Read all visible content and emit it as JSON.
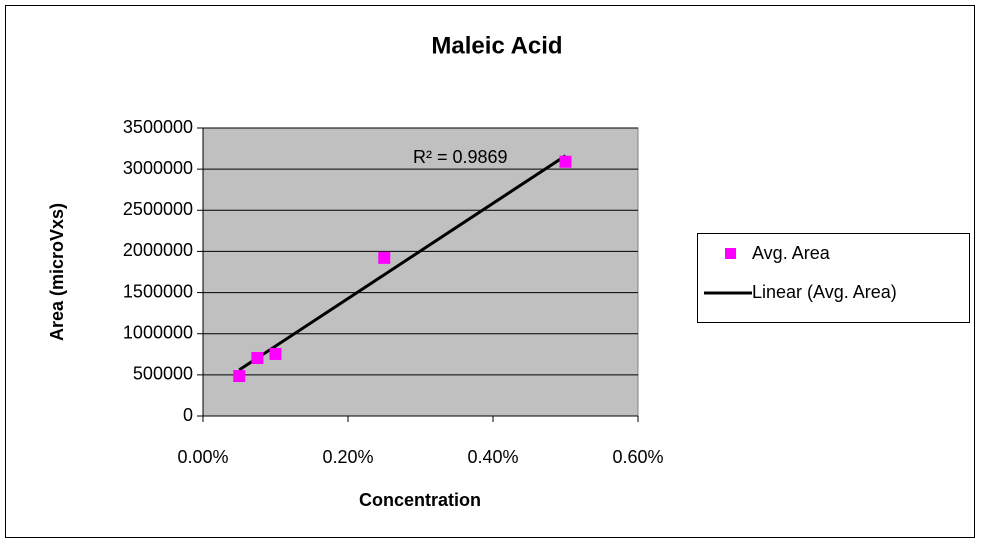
{
  "chart_data": {
    "type": "scatter",
    "title": "Maleic Acid",
    "x_label": "Concentration",
    "y_label": "Area (microVxs)",
    "series": [
      {
        "name": "Avg. Area",
        "color": "#ff00ff",
        "x": [
          0.05,
          0.075,
          0.1,
          0.25,
          0.5
        ],
        "values": [
          486000,
          705000,
          754000,
          1922000,
          3090000
        ]
      },
      {
        "name": "Linear (Avg. Area)",
        "color": "#000000",
        "x": [
          0.05,
          0.5
        ],
        "values": [
          560000,
          3163000
        ]
      }
    ],
    "annotation": "R² = 0.9869",
    "xlim": [
      0,
      0.6
    ],
    "xticks": [
      {
        "value": 0,
        "label": "0.00%"
      },
      {
        "value": 0.2,
        "label": "0.20%"
      },
      {
        "value": 0.4,
        "label": "0.40%"
      },
      {
        "value": 0.6,
        "label": "0.60%"
      }
    ],
    "ylim": [
      0,
      3500000
    ],
    "yticks": [
      0,
      500000,
      1000000,
      1500000,
      2000000,
      2500000,
      3000000,
      3500000
    ],
    "grid": true,
    "legend": "right"
  }
}
